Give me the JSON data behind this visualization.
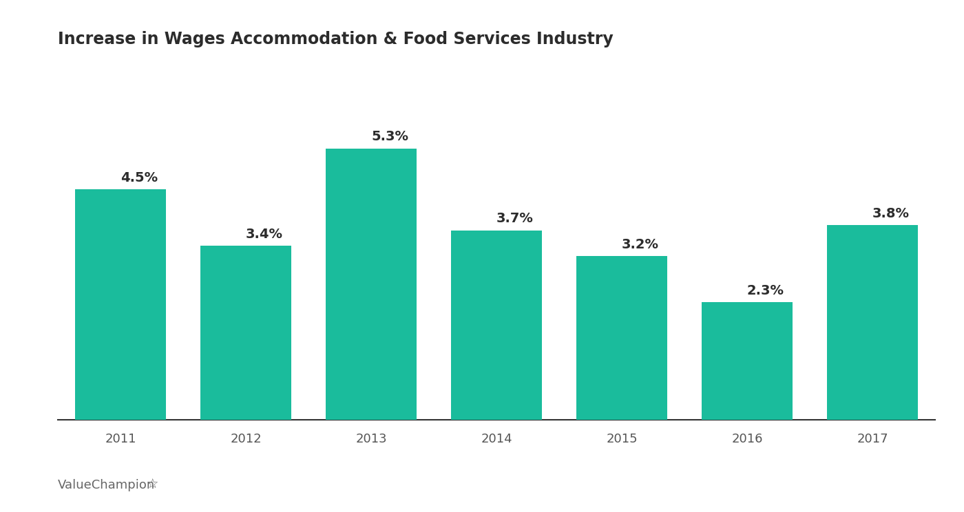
{
  "title": "Increase in Wages Accommodation & Food Services Industry",
  "categories": [
    "2011",
    "2012",
    "2013",
    "2014",
    "2015",
    "2016",
    "2017"
  ],
  "values": [
    4.5,
    3.4,
    5.3,
    3.7,
    3.2,
    2.3,
    3.8
  ],
  "labels": [
    "4.5%",
    "3.4%",
    "5.3%",
    "3.7%",
    "3.2%",
    "2.3%",
    "3.8%"
  ],
  "bar_color": "#1ABC9C",
  "background_color": "#ffffff",
  "title_fontsize": 17,
  "label_fontsize": 14,
  "tick_fontsize": 13,
  "title_color": "#2c2c2c",
  "label_color": "#2c2c2c",
  "tick_color": "#555555",
  "watermark_text": "ValueChampion",
  "watermark_color": "#666666",
  "ylim": [
    0,
    7.0
  ]
}
